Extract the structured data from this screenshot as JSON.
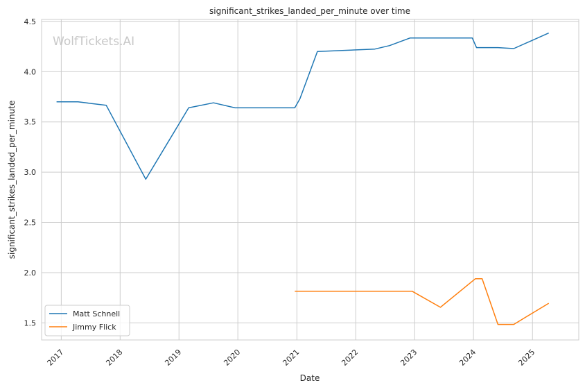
{
  "watermark": "WolfTickets.AI",
  "chart_data": {
    "type": "line",
    "title": "significant_strikes_landed_per_minute over time",
    "xlabel": "Date",
    "ylabel": "significant_strikes_landed_per_minute",
    "x_type": "date",
    "xlim": [
      "2016-09-01",
      "2025-10-15"
    ],
    "ylim": [
      1.33,
      4.52
    ],
    "x_ticks": [
      {
        "label": "2017",
        "date": "2017-01-01"
      },
      {
        "label": "2018",
        "date": "2018-01-01"
      },
      {
        "label": "2019",
        "date": "2019-01-01"
      },
      {
        "label": "2020",
        "date": "2020-01-01"
      },
      {
        "label": "2021",
        "date": "2021-01-01"
      },
      {
        "label": "2022",
        "date": "2022-01-01"
      },
      {
        "label": "2023",
        "date": "2023-01-01"
      },
      {
        "label": "2024",
        "date": "2024-01-01"
      },
      {
        "label": "2025",
        "date": "2025-01-01"
      }
    ],
    "y_ticks": [
      "1.5",
      "2.0",
      "2.5",
      "3.0",
      "3.5",
      "4.0",
      "4.5"
    ],
    "grid": true,
    "legend_position": "lower-left",
    "series": [
      {
        "name": "Matt Schnell",
        "color": "#1f77b4",
        "points": [
          [
            "2016-12-03",
            3.7
          ],
          [
            "2017-04-15",
            3.7
          ],
          [
            "2017-10-07",
            3.665
          ],
          [
            "2018-06-09",
            2.93
          ],
          [
            "2019-03-02",
            3.64
          ],
          [
            "2019-08-03",
            3.69
          ],
          [
            "2019-12-14",
            3.64
          ],
          [
            "2020-12-19",
            3.64
          ],
          [
            "2021-01-20",
            3.73
          ],
          [
            "2021-05-08",
            4.2
          ],
          [
            "2022-04-30",
            4.225
          ],
          [
            "2022-07-30",
            4.26
          ],
          [
            "2022-12-03",
            4.335
          ],
          [
            "2023-12-25",
            4.335
          ],
          [
            "2024-01-20",
            4.24
          ],
          [
            "2024-06-01",
            4.24
          ],
          [
            "2024-09-07",
            4.23
          ],
          [
            "2025-04-12",
            4.385
          ]
        ]
      },
      {
        "name": "Jimmy Flick",
        "color": "#ff7f0e",
        "points": [
          [
            "2020-12-19",
            1.815
          ],
          [
            "2022-12-17",
            1.815
          ],
          [
            "2023-06-10",
            1.655
          ],
          [
            "2024-01-13",
            1.94
          ],
          [
            "2024-02-24",
            1.94
          ],
          [
            "2024-06-01",
            1.485
          ],
          [
            "2024-09-07",
            1.485
          ],
          [
            "2025-04-12",
            1.695
          ]
        ]
      }
    ]
  }
}
